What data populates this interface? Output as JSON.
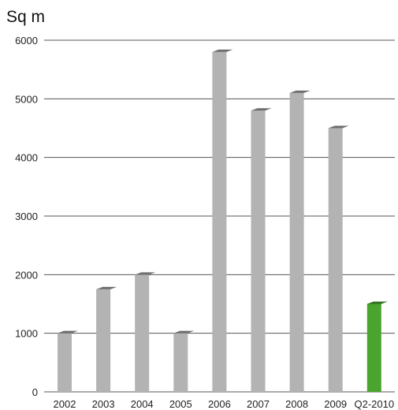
{
  "chart_data": {
    "type": "bar",
    "ylabel": "Sq m",
    "categories": [
      "2002",
      "2003",
      "2004",
      "2005",
      "2006",
      "2007",
      "2008",
      "2009",
      "Q2-2010"
    ],
    "values": [
      1000,
      1750,
      2000,
      1000,
      5800,
      4800,
      5100,
      4500,
      1500
    ],
    "highlight_index": 8,
    "ylim": [
      0,
      6000
    ],
    "yticks": [
      0,
      1000,
      2000,
      3000,
      4000,
      5000,
      6000
    ],
    "grid": true,
    "colors": {
      "bar": "#b3b3b3",
      "bar_cap": "#6e6e6e",
      "highlight": "#4aa52e",
      "highlight_cap": "#2f6e1c",
      "grid": "#555555"
    }
  }
}
